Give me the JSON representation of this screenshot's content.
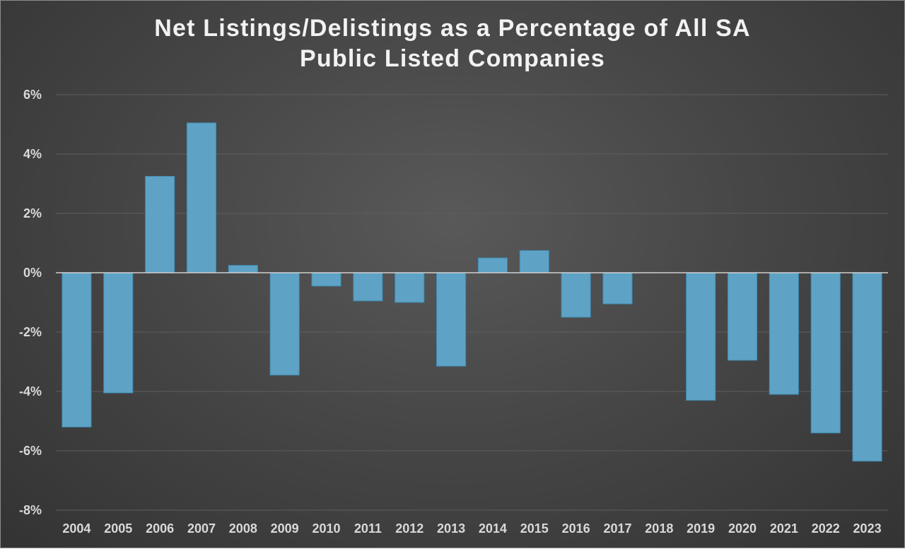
{
  "chart_data": {
    "type": "bar",
    "title": [
      "Net Listings/Delistings as a Percentage of All SA",
      "Public Listed Companies"
    ],
    "xlabel": "",
    "ylabel": "",
    "categories": [
      "2004",
      "2005",
      "2006",
      "2007",
      "2008",
      "2009",
      "2010",
      "2011",
      "2012",
      "2013",
      "2014",
      "2015",
      "2016",
      "2017",
      "2018",
      "2019",
      "2020",
      "2021",
      "2022",
      "2023"
    ],
    "values": [
      -5.2,
      -4.05,
      3.25,
      5.05,
      0.25,
      -3.45,
      -0.45,
      -0.95,
      -1.0,
      -3.15,
      0.5,
      0.75,
      -1.5,
      -1.05,
      0,
      -4.3,
      -2.95,
      -4.1,
      -5.4,
      -6.35
    ],
    "ylim": [
      -8,
      6
    ],
    "yticks": [
      6,
      4,
      2,
      0,
      -2,
      -4,
      -6,
      -8
    ],
    "ytick_labels": [
      "6%",
      "4%",
      "2%",
      "0%",
      "-2%",
      "-4%",
      "-6%",
      "-8%"
    ],
    "grid": true,
    "legend": "none",
    "colors": {
      "bar": "#5ea3c6",
      "bar_edge": "#3f86ab",
      "gridline": "#5e5e5e",
      "zero_line": "#d0d0d0",
      "text": "#d9d9d9",
      "title": "#f2f2f2"
    }
  }
}
